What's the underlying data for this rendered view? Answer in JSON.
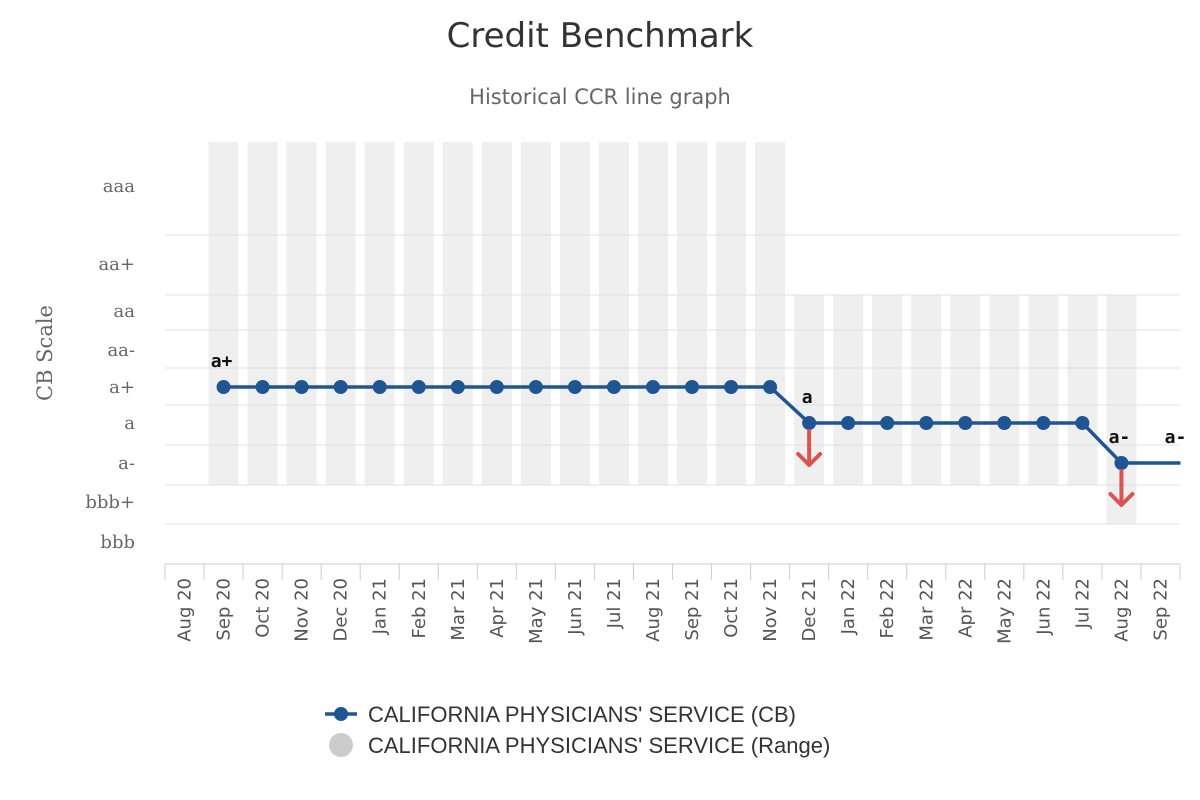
{
  "chart_data": {
    "type": "line",
    "title": "Credit Benchmark",
    "subtitle": "Historical CCR line graph",
    "ylabel": "CB Scale",
    "y_scale": [
      "aaa",
      "aa+",
      "aa",
      "aa-",
      "a+",
      "a",
      "a-",
      "bbb+",
      "bbb"
    ],
    "categories": [
      "Aug 20",
      "Sep 20",
      "Oct 20",
      "Nov 20",
      "Dec 20",
      "Jan 21",
      "Feb 21",
      "Mar 21",
      "Apr 21",
      "May 21",
      "Jun 21",
      "Jul 21",
      "Aug 21",
      "Sep 21",
      "Oct 21",
      "Nov 21",
      "Dec 21",
      "Jan 22",
      "Feb 22",
      "Mar 22",
      "Apr 22",
      "May 22",
      "Jun 22",
      "Jul 22",
      "Aug 22",
      "Sep 22"
    ],
    "series": [
      {
        "name": "CALIFORNIA PHYSICIANS' SERVICE (CB)",
        "color": "#1f5593",
        "values": [
          null,
          "a+",
          "a+",
          "a+",
          "a+",
          "a+",
          "a+",
          "a+",
          "a+",
          "a+",
          "a+",
          "a+",
          "a+",
          "a+",
          "a+",
          "a+",
          "a",
          "a",
          "a",
          "a",
          "a",
          "a",
          "a",
          "a",
          "a-",
          "a-"
        ]
      },
      {
        "name": "CALIFORNIA PHYSICIANS' SERVICE (Range)",
        "color": "#cccccc",
        "range": [
          null,
          [
            "a-",
            "aaa"
          ],
          [
            "a-",
            "aaa"
          ],
          [
            "a-",
            "aaa"
          ],
          [
            "a-",
            "aaa"
          ],
          [
            "a-",
            "aaa"
          ],
          [
            "a-",
            "aaa"
          ],
          [
            "a-",
            "aaa"
          ],
          [
            "a-",
            "aaa"
          ],
          [
            "a-",
            "aaa"
          ],
          [
            "a-",
            "aaa"
          ],
          [
            "a-",
            "aaa"
          ],
          [
            "a-",
            "aaa"
          ],
          [
            "a-",
            "aaa"
          ],
          [
            "a-",
            "aaa"
          ],
          [
            "a-",
            "aaa"
          ],
          [
            "a-",
            "aa"
          ],
          [
            "a-",
            "aa"
          ],
          [
            "a-",
            "aa"
          ],
          [
            "a-",
            "aa"
          ],
          [
            "a-",
            "aa"
          ],
          [
            "a-",
            "aa"
          ],
          [
            "a-",
            "aa"
          ],
          [
            "a-",
            "aa"
          ],
          [
            "bbb+",
            "aa"
          ],
          null
        ]
      }
    ],
    "data_labels": [
      {
        "category": "Sep 20",
        "text": "a+"
      },
      {
        "category": "Dec 21",
        "text": "a"
      },
      {
        "category": "Aug 22",
        "text": "a-"
      },
      {
        "category": "Sep 22",
        "text": "a-"
      }
    ],
    "downgrades": [
      "Dec 21",
      "Aug 22"
    ],
    "grid": true,
    "legend_position": "bottom"
  }
}
